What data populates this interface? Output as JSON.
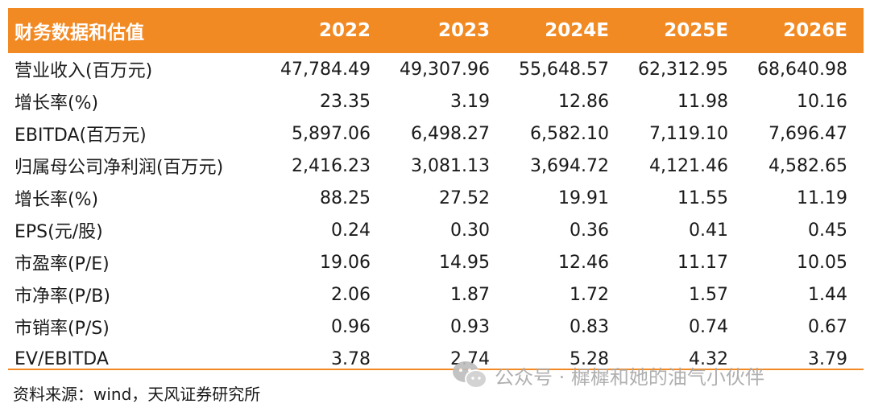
{
  "table": {
    "title": "财务数据和估值",
    "years": [
      "2022",
      "2023",
      "2024E",
      "2025E",
      "2026E"
    ],
    "rows": [
      {
        "label": "营业收入(百万元)",
        "values": [
          "47,784.49",
          "49,307.96",
          "55,648.57",
          "62,312.95",
          "68,640.98"
        ]
      },
      {
        "label": "增长率(%)",
        "values": [
          "23.35",
          "3.19",
          "12.86",
          "11.98",
          "10.16"
        ]
      },
      {
        "label": "EBITDA(百万元)",
        "values": [
          "5,897.06",
          "6,498.27",
          "6,582.10",
          "7,119.10",
          "7,696.47"
        ]
      },
      {
        "label": "归属母公司净利润(百万元)",
        "values": [
          "2,416.23",
          "3,081.13",
          "3,694.72",
          "4,121.46",
          "4,582.65"
        ]
      },
      {
        "label": "增长率(%)",
        "values": [
          "88.25",
          "27.52",
          "19.91",
          "11.55",
          "11.19"
        ]
      },
      {
        "label": "EPS(元/股)",
        "values": [
          "0.24",
          "0.30",
          "0.36",
          "0.41",
          "0.45"
        ]
      },
      {
        "label": "市盈率(P/E)",
        "values": [
          "19.06",
          "14.95",
          "12.46",
          "11.17",
          "10.05"
        ]
      },
      {
        "label": "市净率(P/B)",
        "values": [
          "2.06",
          "1.87",
          "1.72",
          "1.57",
          "1.44"
        ]
      },
      {
        "label": "市销率(P/S)",
        "values": [
          "0.96",
          "0.93",
          "0.83",
          "0.74",
          "0.67"
        ]
      },
      {
        "label": "EV/EBITDA",
        "values": [
          "3.78",
          "2.74",
          "5.28",
          "4.32",
          "3.79"
        ]
      }
    ]
  },
  "source": "资料来源：wind，天风证券研究所",
  "watermark": {
    "text": "公众号 · 樨樨和她的油气小伙伴",
    "icon": "wechat-icon"
  },
  "colors": {
    "accent": "#f28a24",
    "watermark": "#a8a8a8"
  }
}
